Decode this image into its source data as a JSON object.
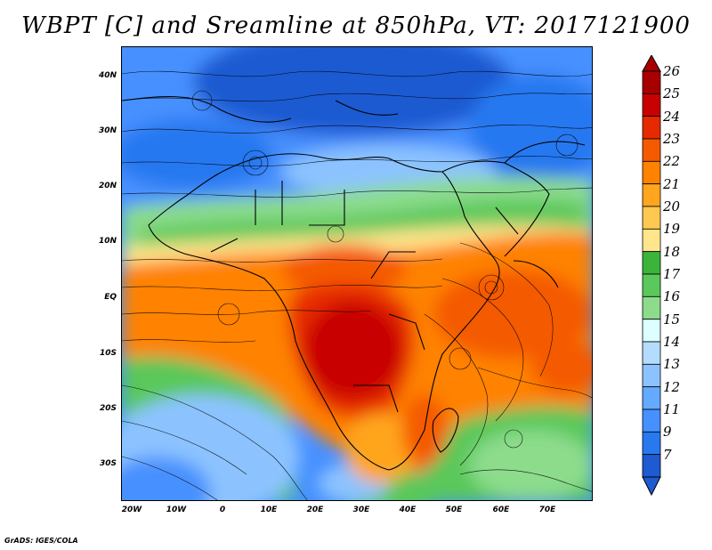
{
  "title": "WBPT [C] and Sreamline at 850hPa, VT: 2017121900",
  "footer": "GrADS: IGES/COLA",
  "lat_labels": [
    "40N",
    "30N",
    "20N",
    "10N",
    "EQ",
    "10S",
    "20S",
    "30S"
  ],
  "lon_labels": [
    "20W",
    "10W",
    "0",
    "10E",
    "20E",
    "30E",
    "40E",
    "50E",
    "60E",
    "70E"
  ],
  "colorbar": {
    "labels": [
      "26",
      "25",
      "24",
      "23",
      "22",
      "21",
      "20",
      "19",
      "18",
      "17",
      "16",
      "15",
      "14",
      "13",
      "12",
      "11",
      "9",
      "7"
    ],
    "colors": [
      "#a80000",
      "#c80000",
      "#e62a00",
      "#f45a00",
      "#ff8200",
      "#ffa51e",
      "#ffc850",
      "#ffe68c",
      "#3cb43c",
      "#5ac85a",
      "#8cdc8c",
      "#dcffff",
      "#b4dcff",
      "#8cc3ff",
      "#64aaff",
      "#4690ff",
      "#2878f0",
      "#1e5ad2"
    ]
  },
  "map_colors": {
    "deep_blue": "#1e5ad2",
    "blue": "#4690ff",
    "light_blue": "#8cc3ff",
    "green": "#5ac85a",
    "light_green": "#8cdc8c",
    "yellow": "#ffe68c",
    "orange": "#ff8200",
    "red_orange": "#f45a00",
    "red": "#d21400"
  }
}
